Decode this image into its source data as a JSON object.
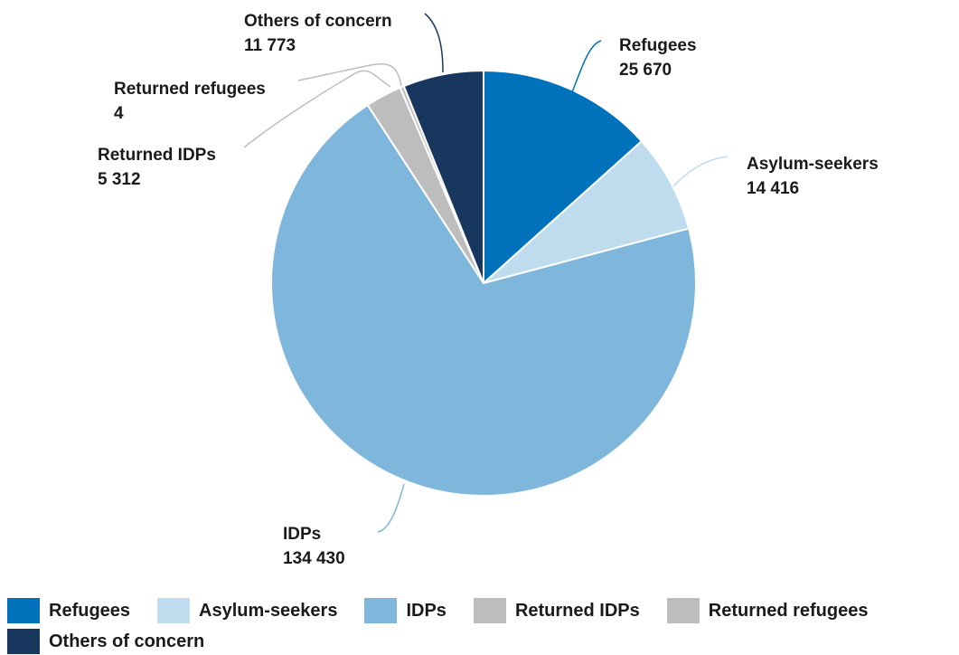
{
  "chart_data": {
    "type": "pie",
    "categories": [
      "Refugees",
      "Asylum-seekers",
      "IDPs",
      "Returned IDPs",
      "Returned refugees",
      "Others of concern"
    ],
    "values": [
      25670,
      14416,
      134430,
      5312,
      4,
      11773
    ],
    "value_labels": [
      "25 670",
      "14 416",
      "134 430",
      "5 312",
      "4",
      "11 773"
    ],
    "colors": [
      "#0072bc",
      "#bfdcee",
      "#7fb6db",
      "#bdbdbd",
      "#bdbdbd",
      "#18375f"
    ],
    "leader_colors": [
      "#0072bc",
      "#bfdcee",
      "#7fb6db",
      "#bdbdbd",
      "#bdbdbd",
      "#18375f"
    ],
    "start_angle_deg": 0,
    "direction": "clockwise",
    "legend_position": "bottom"
  }
}
